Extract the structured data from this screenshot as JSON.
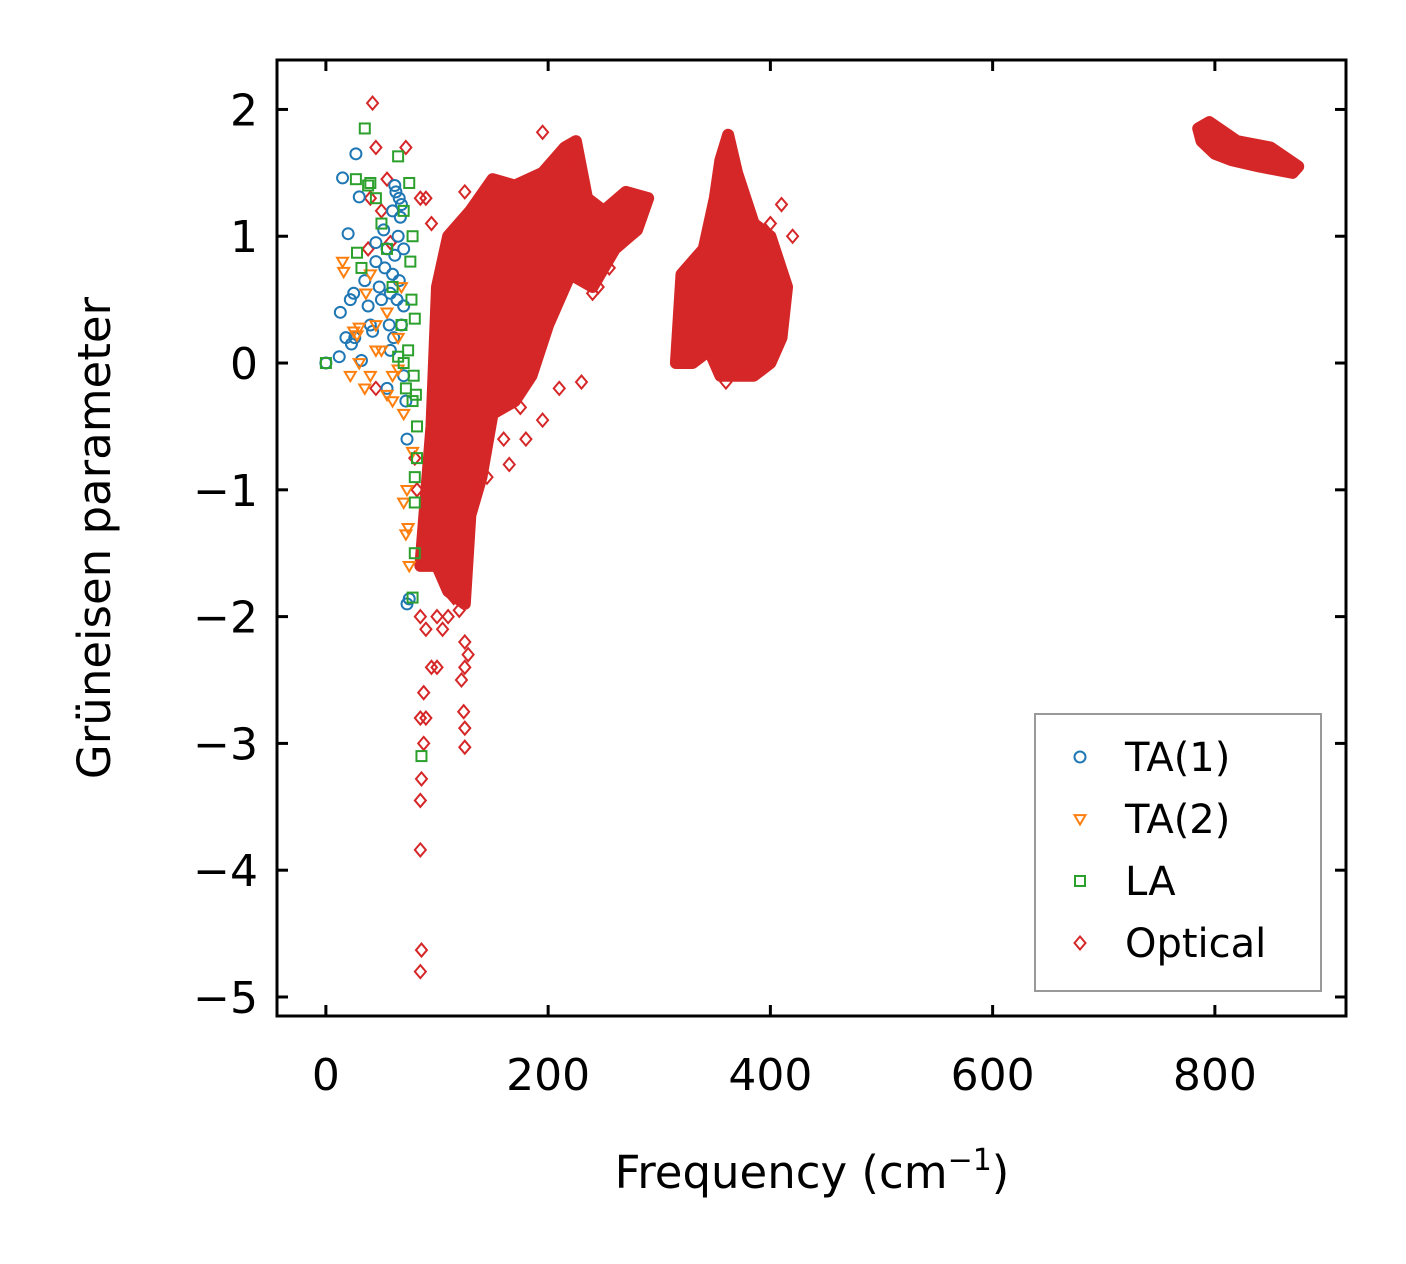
{
  "chart_data": {
    "type": "scatter",
    "title": "",
    "xlabel": "Frequency (cm",
    "xlabel_sup": "−1",
    "xlabel_close": ")",
    "ylabel": "Grüneisen parameter",
    "xlim": [
      -44,
      918
    ],
    "ylim": [
      -5.15,
      2.39
    ],
    "xticks": [
      0,
      200,
      400,
      600,
      800
    ],
    "xtick_labels": [
      "0",
      "200",
      "400",
      "600",
      "800"
    ],
    "yticks": [
      2,
      1,
      0,
      -1,
      -2,
      -3,
      -4,
      -5
    ],
    "ytick_labels": [
      "2",
      "1",
      "0",
      "−1",
      "−2",
      "−3",
      "−4",
      "−5"
    ],
    "grid": false,
    "legend_position": "lower-right",
    "series": [
      {
        "name": "TA(1)",
        "color": "#1f77b4",
        "marker": "circle",
        "points": [
          [
            0,
            0
          ],
          [
            12,
            0.05
          ],
          [
            13,
            0.4
          ],
          [
            15,
            1.46
          ],
          [
            20,
            1.02
          ],
          [
            22,
            0.5
          ],
          [
            25,
            0.55
          ],
          [
            26,
            0.2
          ],
          [
            27,
            1.65
          ],
          [
            30,
            1.31
          ],
          [
            32,
            0.02
          ],
          [
            35,
            0.65
          ],
          [
            40,
            0.3
          ],
          [
            45,
            0.8
          ],
          [
            50,
            0.5
          ],
          [
            55,
            0.9
          ],
          [
            60,
            1.2
          ],
          [
            62,
            1.4
          ],
          [
            65,
            1.0
          ],
          [
            68,
            0.3
          ],
          [
            70,
            -0.1
          ],
          [
            72,
            -0.3
          ],
          [
            73,
            -0.6
          ],
          [
            73,
            -1.9
          ],
          [
            75,
            -1.86
          ],
          [
            58,
            0.1
          ],
          [
            55,
            -0.2
          ],
          [
            48,
            0.6
          ],
          [
            60,
            0.7
          ],
          [
            64,
            0.5
          ],
          [
            66,
            1.3
          ],
          [
            52,
            1.05
          ],
          [
            42,
            0.25
          ],
          [
            38,
            0.45
          ],
          [
            45,
            0.95
          ],
          [
            57,
            0.3
          ],
          [
            62,
            0.85
          ],
          [
            67,
            1.15
          ],
          [
            70,
            0.9
          ],
          [
            18,
            0.2
          ],
          [
            23,
            0.15
          ],
          [
            63,
            1.35
          ],
          [
            68,
            1.25
          ],
          [
            58,
            0.55
          ],
          [
            53,
            0.75
          ],
          [
            61,
            0.2
          ],
          [
            66,
            0.65
          ],
          [
            70,
            0.45
          ]
        ]
      },
      {
        "name": "TA(2)",
        "color": "#ff7f0e",
        "marker": "triangle-down",
        "points": [
          [
            15,
            0.8
          ],
          [
            22,
            -0.1
          ],
          [
            25,
            0.25
          ],
          [
            30,
            0.28
          ],
          [
            35,
            -0.2
          ],
          [
            40,
            -0.1
          ],
          [
            45,
            0.3
          ],
          [
            50,
            0.1
          ],
          [
            55,
            -0.25
          ],
          [
            60,
            -0.3
          ],
          [
            65,
            -0.05
          ],
          [
            70,
            -0.4
          ],
          [
            73,
            -1.0
          ],
          [
            74,
            -1.3
          ],
          [
            72,
            -1.35
          ],
          [
            75,
            -1.6
          ],
          [
            78,
            -0.7
          ],
          [
            70,
            -1.1
          ],
          [
            36,
            0.55
          ],
          [
            45,
            0.1
          ],
          [
            55,
            0.4
          ],
          [
            65,
            0.2
          ],
          [
            40,
            0.7
          ],
          [
            60,
            -0.1
          ],
          [
            30,
            0.0
          ],
          [
            16,
            0.72
          ],
          [
            28,
            0.22
          ],
          [
            68,
            0.6
          ]
        ]
      },
      {
        "name": "LA",
        "color": "#2ca02c",
        "marker": "square",
        "points": [
          [
            0,
            0
          ],
          [
            27,
            1.45
          ],
          [
            28,
            0.87
          ],
          [
            35,
            1.85
          ],
          [
            38,
            1.4
          ],
          [
            40,
            1.42
          ],
          [
            45,
            1.3
          ],
          [
            50,
            1.1
          ],
          [
            55,
            0.9
          ],
          [
            60,
            0.6
          ],
          [
            65,
            1.63
          ],
          [
            68,
            0.3
          ],
          [
            70,
            0.0
          ],
          [
            72,
            -0.2
          ],
          [
            75,
            1.42
          ],
          [
            78,
            1.0
          ],
          [
            80,
            0.35
          ],
          [
            82,
            -0.5
          ],
          [
            80,
            -0.9
          ],
          [
            82,
            -0.75
          ],
          [
            80,
            -1.1
          ],
          [
            78,
            -1.85
          ],
          [
            80,
            -1.5
          ],
          [
            86,
            -3.1
          ],
          [
            76,
            0.8
          ],
          [
            74,
            0.1
          ],
          [
            78,
            -0.3
          ],
          [
            79,
            -0.1
          ],
          [
            70,
            1.2
          ],
          [
            65,
            0.05
          ],
          [
            32,
            0.75
          ],
          [
            77,
            0.5
          ],
          [
            81,
            -0.25
          ]
        ]
      },
      {
        "name": "Optical",
        "color": "#d62728",
        "marker": "diamond",
        "points": [
          [
            42,
            2.05
          ],
          [
            45,
            1.7
          ],
          [
            72,
            1.7
          ],
          [
            85,
            1.3
          ],
          [
            90,
            1.3
          ],
          [
            95,
            1.1
          ],
          [
            125,
            1.35
          ],
          [
            195,
            1.82
          ],
          [
            225,
            1.6
          ],
          [
            410,
            1.25
          ],
          [
            420,
            1.0
          ],
          [
            85,
            -2.0
          ],
          [
            90,
            -2.1
          ],
          [
            95,
            -2.4
          ],
          [
            100,
            -2.4
          ],
          [
            88,
            -2.6
          ],
          [
            90,
            -2.8
          ],
          [
            85,
            -2.8
          ],
          [
            88,
            -3.0
          ],
          [
            86,
            -3.28
          ],
          [
            85,
            -3.45
          ],
          [
            85,
            -3.84
          ],
          [
            86,
            -4.63
          ],
          [
            85,
            -4.8
          ],
          [
            125,
            -2.2
          ],
          [
            128,
            -2.3
          ],
          [
            122,
            -2.5
          ],
          [
            124,
            -2.75
          ],
          [
            125,
            -2.88
          ],
          [
            125,
            -3.03
          ],
          [
            125,
            -2.4
          ],
          [
            100,
            -2.0
          ],
          [
            105,
            -2.1
          ],
          [
            165,
            -0.8
          ],
          [
            160,
            -0.6
          ],
          [
            175,
            -0.35
          ],
          [
            180,
            -0.6
          ],
          [
            195,
            -0.45
          ],
          [
            210,
            -0.2
          ],
          [
            230,
            -0.15
          ],
          [
            245,
            0.6
          ],
          [
            255,
            0.75
          ],
          [
            240,
            0.55
          ],
          [
            135,
            -1.0
          ],
          [
            145,
            -0.9
          ],
          [
            110,
            -2.0
          ],
          [
            90,
            -1.4
          ],
          [
            80,
            -0.75
          ],
          [
            82,
            -1.0
          ],
          [
            50,
            1.2
          ],
          [
            55,
            1.45
          ],
          [
            58,
            0.95
          ],
          [
            45,
            -0.2
          ],
          [
            40,
            1.3
          ],
          [
            38,
            0.9
          ],
          [
            400,
            1.1
          ],
          [
            395,
            0.9
          ],
          [
            375,
            -0.05
          ],
          [
            360,
            -0.15
          ],
          [
            120,
            -1.95
          ],
          [
            115,
            -1.85
          ]
        ],
        "dense_regions": [
          [
            [
              85,
              -1.6
            ],
            [
              95,
              -0.5
            ],
            [
              100,
              0.6
            ],
            [
              110,
              1.0
            ],
            [
              130,
              1.2
            ],
            [
              150,
              1.45
            ],
            [
              170,
              1.4
            ],
            [
              195,
              1.5
            ],
            [
              215,
              1.7
            ],
            [
              225,
              1.75
            ],
            [
              235,
              1.3
            ],
            [
              250,
              1.2
            ],
            [
              270,
              1.35
            ],
            [
              290,
              1.3
            ],
            [
              280,
              1.05
            ],
            [
              260,
              0.9
            ],
            [
              240,
              0.6
            ],
            [
              220,
              0.7
            ],
            [
              200,
              0.3
            ],
            [
              185,
              -0.1
            ],
            [
              170,
              -0.3
            ],
            [
              150,
              -0.4
            ],
            [
              140,
              -0.9
            ],
            [
              130,
              -1.2
            ],
            [
              125,
              -1.9
            ],
            [
              110,
              -1.8
            ],
            [
              100,
              -1.6
            ]
          ],
          [
            [
              315,
              0
            ],
            [
              320,
              0.7
            ],
            [
              340,
              0.9
            ],
            [
              350,
              1.3
            ],
            [
              355,
              1.6
            ],
            [
              362,
              1.8
            ],
            [
              370,
              1.5
            ],
            [
              385,
              1.1
            ],
            [
              400,
              1.0
            ],
            [
              415,
              0.6
            ],
            [
              410,
              0.2
            ],
            [
              400,
              0.0
            ],
            [
              385,
              -0.1
            ],
            [
              370,
              -0.1
            ],
            [
              355,
              -0.1
            ],
            [
              345,
              0.1
            ],
            [
              330,
              0.0
            ]
          ],
          [
            [
              785,
              1.85
            ],
            [
              795,
              1.9
            ],
            [
              820,
              1.75
            ],
            [
              850,
              1.7
            ],
            [
              875,
              1.55
            ],
            [
              870,
              1.5
            ],
            [
              840,
              1.55
            ],
            [
              815,
              1.6
            ],
            [
              800,
              1.65
            ],
            [
              788,
              1.75
            ]
          ]
        ]
      }
    ]
  }
}
